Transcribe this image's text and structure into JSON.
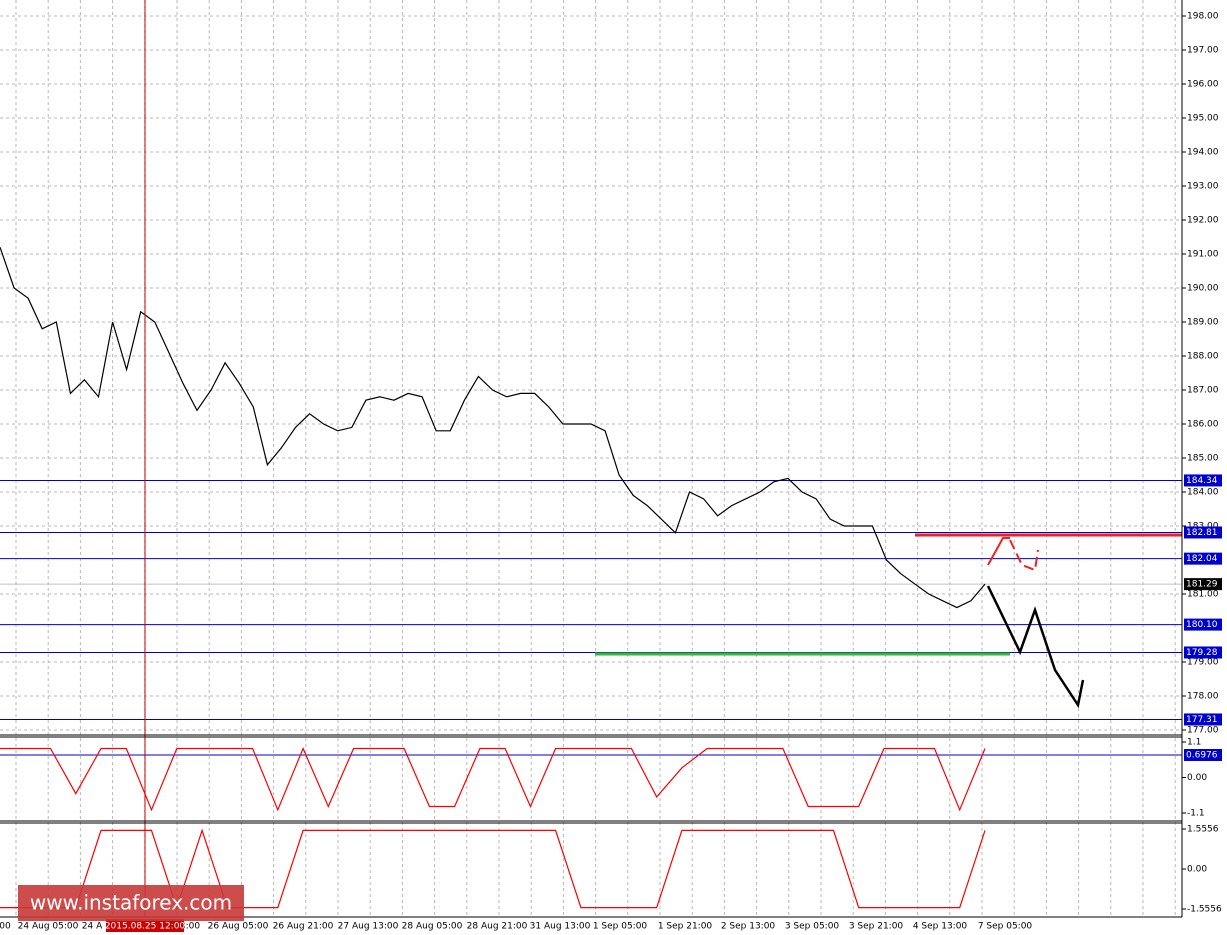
{
  "chart_data": [
    {
      "type": "line",
      "color": "#000000",
      "values": [
        191.2,
        190.0,
        189.7,
        188.8,
        189.0,
        186.9,
        187.3,
        186.8,
        189.0,
        187.6,
        189.3,
        189.0,
        188.1,
        187.2,
        186.4,
        187.0,
        187.8,
        187.2,
        186.5,
        184.8,
        185.3,
        185.9,
        186.3,
        186.0,
        185.8,
        185.9,
        186.7,
        186.8,
        186.7,
        186.9,
        186.8,
        185.8,
        185.8,
        186.7,
        187.4,
        187.0,
        186.8,
        186.9,
        186.9,
        186.5,
        186.0,
        186.0,
        186.0,
        185.8,
        184.5,
        183.9,
        183.6,
        183.2,
        182.8,
        184.0,
        183.8,
        183.3,
        183.6,
        183.8,
        184.0,
        184.3,
        184.4,
        184.0,
        183.8,
        183.2,
        183.0,
        183.0,
        183.0,
        182.0,
        181.6,
        181.3,
        181.0,
        180.8,
        180.6,
        180.8,
        181.29
      ],
      "ylim": [
        177,
        198
      ],
      "yticks": [
        {
          "value": 198,
          "label": "198.00"
        },
        {
          "value": 197,
          "label": "197.00"
        },
        {
          "value": 196,
          "label": "196.00"
        },
        {
          "value": 195,
          "label": "195.00"
        },
        {
          "value": 194,
          "label": "194.00"
        },
        {
          "value": 193,
          "label": "193.00"
        },
        {
          "value": 192,
          "label": "192.00"
        },
        {
          "value": 191,
          "label": "191.00"
        },
        {
          "value": 190,
          "label": "190.00"
        },
        {
          "value": 189,
          "label": "189.00"
        },
        {
          "value": 188,
          "label": "188.00"
        },
        {
          "value": 187,
          "label": "187.00"
        },
        {
          "value": 186,
          "label": "186.00"
        },
        {
          "value": 185,
          "label": "185.00"
        },
        {
          "value": 184,
          "label": "184.00"
        },
        {
          "value": 183,
          "label": "183.00"
        },
        {
          "value": 181,
          "label": "181.00"
        },
        {
          "value": 179,
          "label": "179.00"
        },
        {
          "value": 178,
          "label": "178.00"
        },
        {
          "value": 177,
          "label": "177.00"
        }
      ],
      "levels": [
        {
          "value": 184.34,
          "label": "184.34"
        },
        {
          "value": 182.81,
          "label": "182.81"
        },
        {
          "value": 182.04,
          "label": "182.04"
        },
        {
          "value": 180.1,
          "label": "180.10"
        },
        {
          "value": 179.28,
          "label": "179.28"
        },
        {
          "value": 177.31,
          "label": "177.31"
        }
      ],
      "level_color": "#0000cc",
      "last_price": 181.29,
      "grid": true
    },
    {
      "type": "line",
      "color": "#ff0000",
      "values": [
        0.9,
        0.9,
        0.9,
        -0.5,
        0.9,
        0.9,
        -1.0,
        0.9,
        0.9,
        0.9,
        0.9,
        -1.0,
        0.9,
        -0.9,
        0.9,
        0.9,
        0.9,
        -0.9,
        -0.9,
        0.9,
        0.9,
        -0.9,
        0.9,
        0.9,
        0.9,
        0.9,
        -0.6,
        0.3,
        0.9,
        0.9,
        0.9,
        0.9,
        -0.9,
        -0.9,
        -0.9,
        0.9,
        0.9,
        0.9,
        -1.0,
        0.9
      ],
      "ylim": [
        -1.1,
        1.1
      ],
      "yticks": [
        1.1,
        {
          "value": 0,
          "label": "0.00"
        },
        -1.1
      ],
      "levels": [
        0.6976
      ],
      "level_color": "#0000cc"
    },
    {
      "type": "line",
      "color": "#ff0000",
      "values": [
        -1.5,
        -1.5,
        -1.5,
        -1.5,
        1.5,
        1.5,
        1.5,
        -1.5,
        1.5,
        -1.5,
        -1.5,
        -1.5,
        1.5,
        1.5,
        1.5,
        1.5,
        1.5,
        1.5,
        1.5,
        1.5,
        1.5,
        1.5,
        1.5,
        -1.5,
        -1.5,
        -1.5,
        -1.5,
        1.5,
        1.5,
        1.5,
        1.5,
        1.5,
        1.5,
        1.5,
        -1.5,
        -1.5,
        -1.5,
        -1.5,
        -1.5,
        1.5
      ],
      "ylim": [
        -1.5556,
        1.5556
      ],
      "yticks": [
        1.5556,
        {
          "value": 0,
          "label": "0.00"
        },
        -1.5556
      ]
    }
  ],
  "time_axis": {
    "labels": [
      "00",
      "24 Aug 05:00",
      "24 A",
      "3:00",
      "26 Aug 05:00",
      "26 Aug 21:00",
      "27 Aug 13:00",
      "28 Aug 05:00",
      "28 Aug 21:00",
      "31 Aug 13:00",
      "1 Sep 05:00",
      "1 Sep 21:00",
      "2 Sep 13:00",
      "3 Sep 05:00",
      "3 Sep 21:00",
      "4 Sep 13:00",
      "7 Sep 05:00"
    ],
    "crosshair_label": "2015.08.25 12:00"
  },
  "watermark": "www.instaforex.com"
}
